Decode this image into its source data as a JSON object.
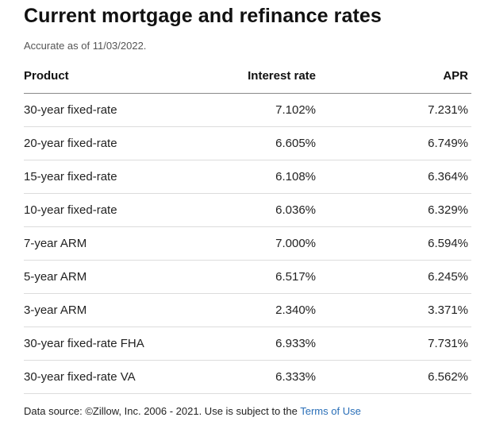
{
  "title": "Current mortgage and refinance rates",
  "subtitle": "Accurate as of 11/03/2022.",
  "table": {
    "headers": {
      "product": "Product",
      "interest_rate": "Interest rate",
      "apr": "APR"
    },
    "rows": [
      {
        "product": "30-year fixed-rate",
        "interest_rate": "7.102%",
        "apr": "7.231%"
      },
      {
        "product": "20-year fixed-rate",
        "interest_rate": "6.605%",
        "apr": "6.749%"
      },
      {
        "product": "15-year fixed-rate",
        "interest_rate": "6.108%",
        "apr": "6.364%"
      },
      {
        "product": "10-year fixed-rate",
        "interest_rate": "6.036%",
        "apr": "6.329%"
      },
      {
        "product": "7-year ARM",
        "interest_rate": "7.000%",
        "apr": "6.594%"
      },
      {
        "product": "5-year ARM",
        "interest_rate": "6.517%",
        "apr": "6.245%"
      },
      {
        "product": "3-year ARM",
        "interest_rate": "2.340%",
        "apr": "3.371%"
      },
      {
        "product": "30-year fixed-rate FHA",
        "interest_rate": "6.933%",
        "apr": "7.731%"
      },
      {
        "product": "30-year fixed-rate VA",
        "interest_rate": "6.333%",
        "apr": "6.562%"
      }
    ]
  },
  "footer": {
    "text": "Data source: ©Zillow, Inc. 2006 - 2021. Use is subject to the ",
    "link_label": "Terms of Use"
  },
  "colors": {
    "link": "#2a6fb8",
    "header_rule": "#8a8a8a",
    "row_rule": "#dcdcdc"
  }
}
